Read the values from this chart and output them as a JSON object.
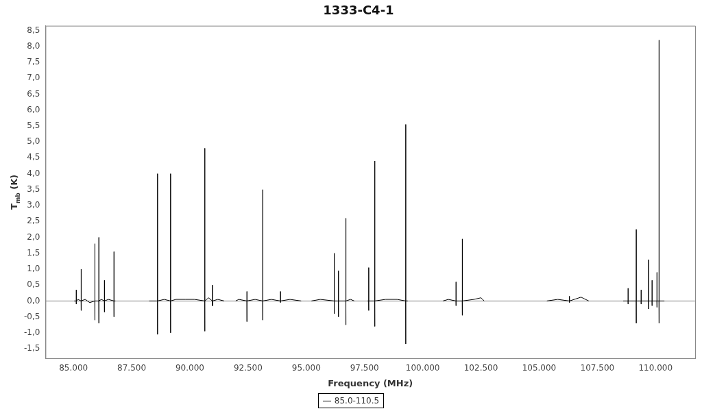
{
  "chart_data": {
    "type": "line",
    "title": "1333-C4-1",
    "xlabel": "Frequency (MHz)",
    "ylabel": "T$_{mb}$ (K)",
    "xlim": [
      83800,
      111700
    ],
    "ylim": [
      -1.8,
      8.65
    ],
    "xticks": [
      {
        "value": 85000,
        "label": "85.000"
      },
      {
        "value": 87500,
        "label": "87.500"
      },
      {
        "value": 90000,
        "label": "90.000"
      },
      {
        "value": 92500,
        "label": "92.500"
      },
      {
        "value": 95000,
        "label": "95.000"
      },
      {
        "value": 97500,
        "label": "97.500"
      },
      {
        "value": 100000,
        "label": "100.000"
      },
      {
        "value": 102500,
        "label": "102.500"
      },
      {
        "value": 105000,
        "label": "105.000"
      },
      {
        "value": 107500,
        "label": "107.500"
      },
      {
        "value": 110000,
        "label": "110.000"
      }
    ],
    "yticks": [
      {
        "value": -1.5,
        "label": "-1,5"
      },
      {
        "value": -1,
        "label": "-1,0"
      },
      {
        "value": -0.5,
        "label": "-0,5"
      },
      {
        "value": 0,
        "label": "0,0"
      },
      {
        "value": 0.5,
        "label": "0,5"
      },
      {
        "value": 1,
        "label": "1,0"
      },
      {
        "value": 1.5,
        "label": "1,5"
      },
      {
        "value": 2,
        "label": "2,0"
      },
      {
        "value": 2.5,
        "label": "2,5"
      },
      {
        "value": 3,
        "label": "3,0"
      },
      {
        "value": 3.5,
        "label": "3,5"
      },
      {
        "value": 4,
        "label": "4,0"
      },
      {
        "value": 4.5,
        "label": "4,5"
      },
      {
        "value": 5,
        "label": "5,0"
      },
      {
        "value": 5.5,
        "label": "5,5"
      },
      {
        "value": 6,
        "label": "6,0"
      },
      {
        "value": 6.5,
        "label": "6,5"
      },
      {
        "value": 7,
        "label": "7,0"
      },
      {
        "value": 7.5,
        "label": "7,5"
      },
      {
        "value": 8,
        "label": "8,0"
      },
      {
        "value": 8.5,
        "label": "8,5"
      }
    ],
    "grid": false,
    "legend": "bottom",
    "marker": "none",
    "line_style": "solid",
    "ref_lines": [
      {
        "axis": "y",
        "value": 0,
        "color": "#808080"
      }
    ],
    "series": [
      {
        "name": "85.0-110.5",
        "color": "#000000",
        "x": [
          85030,
          85118,
          85120,
          85121,
          85123,
          85200,
          85328,
          85330,
          85331,
          85333,
          85500,
          85700,
          85918,
          85920,
          85921,
          85923,
          86088,
          86090,
          86091,
          86093,
          86200,
          86328,
          86330,
          86331,
          86333,
          86500,
          86738,
          86740,
          86741,
          86743,
          86800,
          87500,
          88250,
          88608,
          88610,
          88611,
          88613,
          88900,
          89168,
          89170,
          89171,
          89173,
          89400,
          89800,
          90200,
          90638,
          90640,
          90641,
          90643,
          90800,
          90968,
          90970,
          90971,
          90973,
          91200,
          91470,
          91700,
          91970,
          92100,
          92448,
          92450,
          92451,
          92453,
          92800,
          93128,
          93130,
          93131,
          93133,
          93500,
          93888,
          93890,
          93891,
          93893,
          94300,
          94780,
          95000,
          95220,
          95600,
          96198,
          96200,
          96201,
          96203,
          96378,
          96380,
          96381,
          96383,
          96698,
          96700,
          96701,
          96703,
          96900,
          97060,
          97350,
          97620,
          97678,
          97680,
          97681,
          97683,
          97938,
          97940,
          97941,
          97943,
          98400,
          98900,
          99268,
          99270,
          99271,
          99273,
          99360,
          100100,
          100870,
          101100,
          101428,
          101430,
          101431,
          101433,
          101698,
          101700,
          101701,
          101703,
          102200,
          102500,
          102640,
          104000,
          105330,
          105800,
          106298,
          106300,
          106301,
          106303,
          106800,
          107130,
          107900,
          108610,
          108818,
          108820,
          108821,
          108823,
          109168,
          109170,
          109171,
          109173,
          109378,
          109380,
          109381,
          109383,
          109698,
          109700,
          109701,
          109703,
          109848,
          109850,
          109851,
          109853,
          110058,
          110060,
          110061,
          110063,
          110148,
          110150,
          110151,
          110153,
          110380
        ],
        "values": [
          0,
          0,
          0.35,
          -0.1,
          0,
          0.05,
          0,
          1.0,
          -0.3,
          0,
          0.05,
          -0.05,
          0,
          1.8,
          -0.6,
          0,
          0,
          2.0,
          -0.7,
          0,
          0.05,
          0,
          0.65,
          -0.35,
          0,
          0.05,
          0,
          1.55,
          -0.5,
          0,
          0,
          null,
          0,
          0,
          4.0,
          -1.05,
          0,
          0.05,
          0,
          4.0,
          -1.0,
          0,
          0.05,
          0.05,
          0.05,
          0,
          4.8,
          -0.95,
          0,
          0.1,
          0,
          0.5,
          -0.15,
          0,
          0.05,
          0,
          null,
          0,
          0.05,
          0,
          0.3,
          -0.65,
          0,
          0.05,
          0,
          3.5,
          -0.6,
          0,
          0.05,
          0,
          0.3,
          -0.05,
          0,
          0.05,
          0,
          null,
          0,
          0.05,
          0,
          1.5,
          -0.4,
          0,
          0,
          0.95,
          -0.5,
          0,
          0,
          2.6,
          -0.75,
          0,
          0.05,
          0,
          null,
          0,
          0,
          1.05,
          -0.3,
          0,
          0,
          4.4,
          -0.8,
          0,
          0.05,
          0.05,
          0,
          5.55,
          -1.35,
          0,
          0,
          null,
          0,
          0.05,
          0,
          0.6,
          -0.15,
          0,
          0,
          1.95,
          -0.45,
          0,
          0.05,
          0.1,
          0,
          null,
          0,
          0.05,
          0,
          0.15,
          -0.05,
          0,
          0.12,
          0,
          null,
          0,
          0,
          0.4,
          -0.1,
          0,
          0,
          2.25,
          -0.7,
          0,
          0,
          0.35,
          -0.1,
          0,
          0,
          1.3,
          -0.25,
          0,
          0,
          0.65,
          -0.15,
          0,
          0,
          0.9,
          -0.2,
          0,
          0,
          8.2,
          -0.7,
          0,
          0
        ]
      }
    ]
  }
}
